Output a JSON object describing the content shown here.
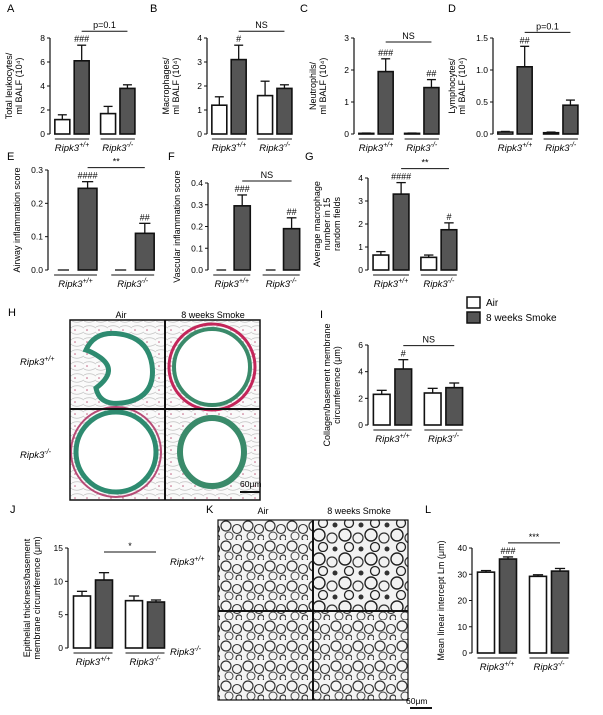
{
  "legend": [
    {
      "label": "Air",
      "color": "#ffffff"
    },
    {
      "label": "8 weeks Smoke",
      "color": "#555555"
    }
  ],
  "images": {
    "H": {
      "label": "H",
      "col_air": "Air",
      "col_smoke": "8 weeks Smoke",
      "row1": "Ripk3+/+",
      "row2": "Ripk3-/-",
      "scale": "60μm"
    },
    "K": {
      "label": "K",
      "col_air": "Air",
      "col_smoke": "8 weeks Smoke",
      "row1": "Ripk3+/+",
      "row2": "Ripk3-/-",
      "scale": "60μm"
    }
  },
  "chart_data": [
    {
      "id": "A",
      "type": "bar",
      "label": "A",
      "ylabel": [
        "Total leukocytes/",
        "ml BALF (10⁴)"
      ],
      "ylim": [
        0,
        8
      ],
      "yticks": [
        "0",
        "2",
        "4",
        "6",
        "8"
      ],
      "groups": [
        "Ripk3+/+",
        "Ripk3-/-"
      ],
      "series": [
        {
          "values": [
            1.2,
            1.7
          ],
          "err": [
            0.4,
            0.6
          ]
        },
        {
          "values": [
            6.1,
            3.8
          ],
          "err": [
            1.3,
            0.3
          ]
        }
      ],
      "marks": [
        "",
        "###",
        "",
        ""
      ],
      "bracket": {
        "text": "p=0.1",
        "from": 1,
        "to": 3
      }
    },
    {
      "id": "B",
      "type": "bar",
      "label": "B",
      "ylabel": [
        "Macrophages/",
        "ml BALF (10⁴)"
      ],
      "ylim": [
        0,
        4
      ],
      "yticks": [
        "0",
        "1",
        "2",
        "3",
        "4"
      ],
      "groups": [
        "Ripk3+/+",
        "Ripk3-/-"
      ],
      "series": [
        {
          "values": [
            1.2,
            1.6
          ],
          "err": [
            0.35,
            0.6
          ]
        },
        {
          "values": [
            3.1,
            1.9
          ],
          "err": [
            0.6,
            0.15
          ]
        }
      ],
      "marks": [
        "",
        "#",
        "",
        ""
      ],
      "bracket": {
        "text": "NS",
        "from": 1,
        "to": 3
      }
    },
    {
      "id": "C",
      "type": "bar",
      "label": "C",
      "ylabel": [
        "Neutrophils/",
        "ml BALF (10⁴)"
      ],
      "ylim": [
        0,
        3
      ],
      "yticks": [
        "0",
        "1",
        "2",
        "3"
      ],
      "groups": [
        "Ripk3+/+",
        "Ripk3-/-"
      ],
      "series": [
        {
          "values": [
            0.02,
            0.02
          ],
          "err": [
            0.01,
            0.01
          ]
        },
        {
          "values": [
            1.95,
            1.45
          ],
          "err": [
            0.4,
            0.25
          ]
        }
      ],
      "marks": [
        "",
        "###",
        "",
        "##"
      ],
      "bracket": {
        "text": "NS",
        "from": 1,
        "to": 3
      }
    },
    {
      "id": "D",
      "type": "bar",
      "label": "D",
      "ylabel": [
        "Lymphocytes/",
        "ml BALF (10⁴)"
      ],
      "ylim": [
        0,
        1.5
      ],
      "yticks": [
        "0.0",
        "0.5",
        "1.0",
        "1.5"
      ],
      "groups": [
        "Ripk3+/+",
        "Ripk3-/-"
      ],
      "series": [
        {
          "values": [
            0.03,
            0.02
          ],
          "err": [
            0.01,
            0.01
          ]
        },
        {
          "values": [
            1.05,
            0.45
          ],
          "err": [
            0.32,
            0.08
          ]
        }
      ],
      "marks": [
        "",
        "##",
        "",
        ""
      ],
      "bracket": {
        "text": "p=0.1",
        "from": 1,
        "to": 3
      }
    },
    {
      "id": "E",
      "type": "bar",
      "label": "E",
      "ylabel": [
        "Airway inflammation score"
      ],
      "ylim": [
        0,
        0.3
      ],
      "yticks": [
        "0.0",
        "0.1",
        "0.2",
        "0.3"
      ],
      "groups": [
        "Ripk3+/+",
        "Ripk3-/-"
      ],
      "series": [
        {
          "values": [
            0,
            0
          ],
          "err": [
            0,
            0
          ]
        },
        {
          "values": [
            0.245,
            0.11
          ],
          "err": [
            0.02,
            0.03
          ]
        }
      ],
      "marks": [
        "",
        "####",
        "",
        "##"
      ],
      "bracket": {
        "text": "**",
        "from": 1,
        "to": 3
      }
    },
    {
      "id": "F",
      "type": "bar",
      "label": "F",
      "ylabel": [
        "Vascular inflammation score"
      ],
      "ylim": [
        0,
        0.4
      ],
      "yticks": [
        "0.0",
        "0.1",
        "0.2",
        "0.3",
        "0.4"
      ],
      "groups": [
        "Ripk3+/+",
        "Ripk3-/-"
      ],
      "series": [
        {
          "values": [
            0,
            0
          ],
          "err": [
            0,
            0
          ]
        },
        {
          "values": [
            0.295,
            0.19
          ],
          "err": [
            0.05,
            0.05
          ]
        }
      ],
      "marks": [
        "",
        "###",
        "",
        "##"
      ],
      "bracket": {
        "text": "NS",
        "from": 1,
        "to": 3
      }
    },
    {
      "id": "G",
      "type": "bar",
      "label": "G",
      "ylabel": [
        "Average macrophage",
        "number in 15",
        "random fields"
      ],
      "ylim": [
        0,
        4
      ],
      "yticks": [
        "0",
        "1",
        "2",
        "3",
        "4"
      ],
      "groups": [
        "Ripk3+/+",
        "Ripk3-/-"
      ],
      "series": [
        {
          "values": [
            0.65,
            0.55
          ],
          "err": [
            0.15,
            0.1
          ]
        },
        {
          "values": [
            3.3,
            1.75
          ],
          "err": [
            0.5,
            0.3
          ]
        }
      ],
      "marks": [
        "",
        "####",
        "",
        "#"
      ],
      "bracket": {
        "text": "**",
        "from": 1,
        "to": 3
      }
    },
    {
      "id": "I",
      "type": "bar",
      "label": "I",
      "ylabel": [
        "Collagen/basement membrane",
        "circumference (μm)"
      ],
      "ylim": [
        0,
        6
      ],
      "yticks": [
        "0",
        "2",
        "4",
        "6"
      ],
      "groups": [
        "Ripk3+/+",
        "Ripk3-/-"
      ],
      "series": [
        {
          "values": [
            2.3,
            2.4
          ],
          "err": [
            0.3,
            0.35
          ]
        },
        {
          "values": [
            4.2,
            2.8
          ],
          "err": [
            0.7,
            0.35
          ]
        }
      ],
      "marks": [
        "",
        "#",
        "",
        ""
      ],
      "bracket": {
        "text": "NS",
        "from": 1,
        "to": 3
      }
    },
    {
      "id": "J",
      "type": "bar",
      "label": "J",
      "ylabel": [
        "Epithelial thickness/basement",
        "membrane circumference (μm)"
      ],
      "ylim": [
        0,
        15
      ],
      "yticks": [
        "0",
        "5",
        "10",
        "15"
      ],
      "groups": [
        "Ripk3+/+",
        "Ripk3-/-"
      ],
      "series": [
        {
          "values": [
            7.8,
            7.1
          ],
          "err": [
            0.7,
            0.7
          ]
        },
        {
          "values": [
            10.2,
            6.9
          ],
          "err": [
            1.1,
            0.3
          ]
        }
      ],
      "marks": [
        "",
        "",
        "",
        ""
      ],
      "bracket": {
        "text": "*",
        "from": 1,
        "to": 3
      }
    },
    {
      "id": "L",
      "type": "bar",
      "label": "L",
      "ylabel": [
        "Mean linear intercept Lm (μm)"
      ],
      "ylim": [
        0,
        40
      ],
      "yticks": [
        "0",
        "10",
        "20",
        "30",
        "40"
      ],
      "groups": [
        "Ripk3+/+",
        "Ripk3-/-"
      ],
      "series": [
        {
          "values": [
            30.8,
            29.2
          ],
          "err": [
            0.6,
            0.6
          ]
        },
        {
          "values": [
            35.8,
            31.2
          ],
          "err": [
            0.8,
            1.0
          ]
        }
      ],
      "marks": [
        "",
        "###",
        "",
        ""
      ],
      "bracket": {
        "text": "***",
        "from": 1,
        "to": 3
      }
    }
  ]
}
